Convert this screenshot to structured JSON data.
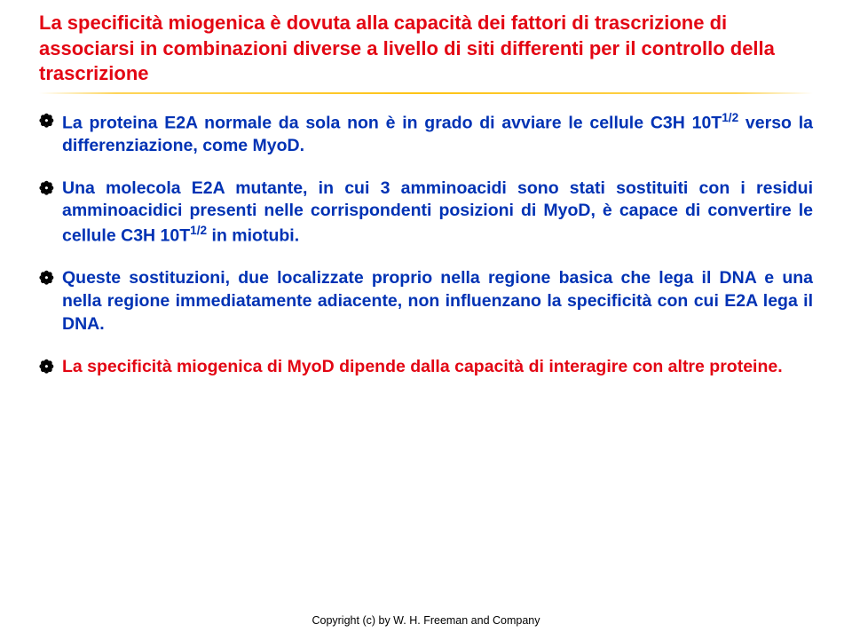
{
  "title": {
    "text": "La specificità miogenica è dovuta alla capacità dei fattori di trascrizione di associarsi in combinazioni diverse a livello di siti differenti per il controllo della trascrizione",
    "color": "#e30613",
    "fontsize": 22
  },
  "divider": {
    "color": "#fdc314"
  },
  "bullets": {
    "glyph": "❁",
    "icon_color": "#000000",
    "fontsize": 19.5,
    "items": [
      {
        "color": "#0032b4",
        "html": "La proteina E2A normale da sola non è in grado di avviare le cellule C3H 10T<sup>1/2</sup> verso la differenziazione, come MyoD."
      },
      {
        "color": "#0032b4",
        "html": "Una molecola E2A mutante, in cui 3 amminoacidi sono stati sostituiti con i residui amminoacidici presenti nelle corrispondenti posizioni di MyoD, è capace di convertire le cellule C3H 10T<sup>1/2</sup> in miotubi."
      },
      {
        "color": "#0032b4",
        "html": "Queste sostituzioni, due localizzate proprio nella regione basica che lega il DNA e una nella regione immediatamente adiacente, non influenzano la specificità con cui E2A lega il DNA."
      },
      {
        "color": "#e30613",
        "html": "La specificità miogenica di MyoD dipende dalla capacità di interagire con altre proteine."
      }
    ]
  },
  "footer": {
    "text": "Copyright (c) by W. H. Freeman and Company",
    "color": "#000000",
    "fontsize": 12.5
  }
}
